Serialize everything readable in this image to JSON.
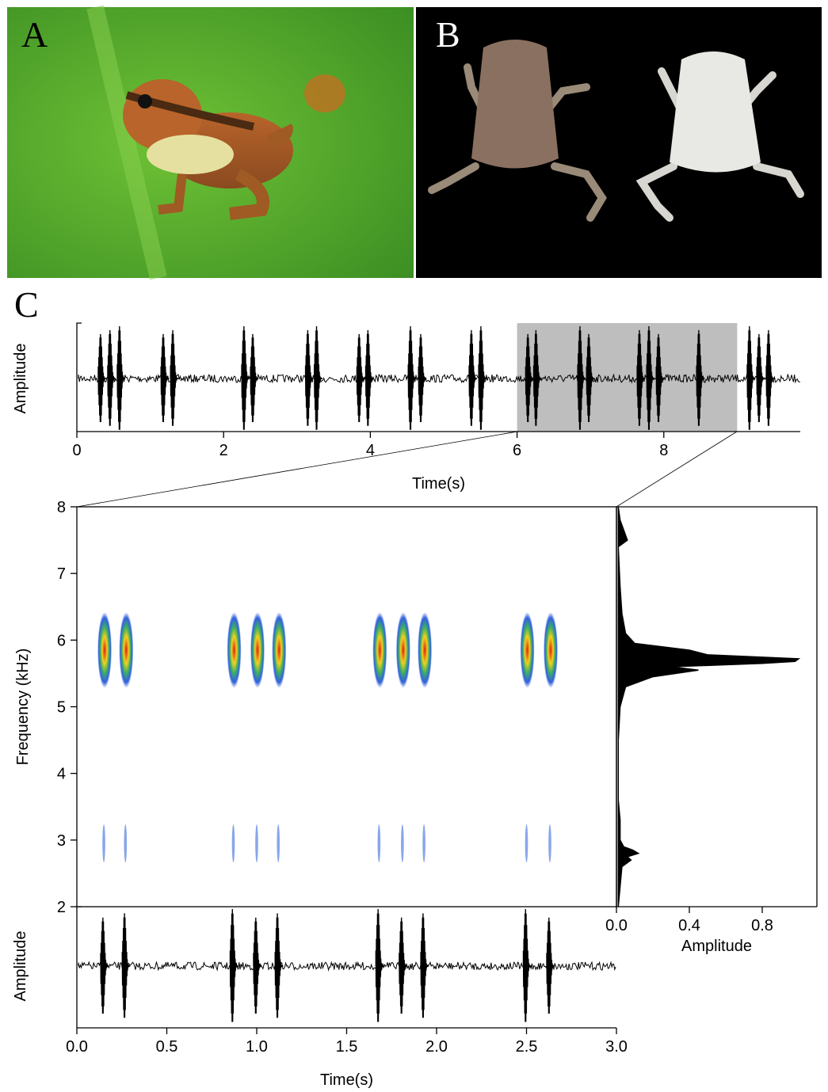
{
  "panels": {
    "a": "A",
    "b": "B",
    "c": "C"
  },
  "chart_data": [
    {
      "type": "oscillogram",
      "xlim": [
        0,
        9.86
      ],
      "xticks": [
        0,
        2,
        4,
        6,
        8
      ],
      "xlabel": "Time(s)",
      "ylabel": "Amplitude",
      "highlight": [
        6,
        9
      ],
      "pulses": [
        0.335,
        0.464,
        0.594,
        1.19,
        1.32,
        2.29,
        2.41,
        3.16,
        3.28,
        3.86,
        3.98,
        4.56,
        4.7,
        5.39,
        5.52,
        6.16,
        6.27,
        6.87,
        6.99,
        7.68,
        7.81,
        7.94,
        8.49,
        9.18,
        9.31,
        9.44
      ]
    },
    {
      "type": "spectrogram",
      "xlim": [
        0,
        3
      ],
      "ylim": [
        2,
        8
      ],
      "yticks": [
        2,
        3,
        4,
        5,
        6,
        7,
        8
      ],
      "ylabel": "Frequency (kHz)",
      "notes": [
        0.15,
        0.27,
        0.87,
        1.0,
        1.12,
        1.68,
        1.81,
        1.93,
        2.5,
        2.63
      ],
      "dominant_frequency": 5.85,
      "harmonic_frequency": 2.95
    },
    {
      "type": "power-spectrum",
      "xlim": [
        0,
        1.1
      ],
      "ylim": [
        2,
        8
      ],
      "xticks": [
        {
          "value": 0,
          "label": "0.0"
        },
        0.4,
        0.8
      ],
      "xlabel": "Amplitude",
      "frequency": [
        2.0,
        2.3,
        2.6,
        2.7,
        2.75,
        2.8,
        2.85,
        2.9,
        3.0,
        3.3,
        3.6,
        4.0,
        4.5,
        5.0,
        5.3,
        5.45,
        5.55,
        5.6,
        5.65,
        5.68,
        5.72,
        5.78,
        5.85,
        5.95,
        6.1,
        6.4,
        6.8,
        7.4,
        7.5,
        7.8,
        8.0
      ],
      "amplitude": [
        0.01,
        0.02,
        0.03,
        0.08,
        0.06,
        0.12,
        0.09,
        0.04,
        0.02,
        0.02,
        0.01,
        0.01,
        0.01,
        0.02,
        0.05,
        0.2,
        0.45,
        0.3,
        0.8,
        0.98,
        1.0,
        0.5,
        0.4,
        0.1,
        0.05,
        0.03,
        0.02,
        0.01,
        0.06,
        0.02,
        0.01
      ]
    },
    {
      "type": "oscillogram",
      "xlim": [
        0,
        3
      ],
      "xticks": [
        {
          "value": 0,
          "label": "0.0"
        },
        0.5,
        {
          "value": 1,
          "label": "1.0"
        },
        1.5,
        {
          "value": 2,
          "label": "2.0"
        },
        2.5,
        {
          "value": 3,
          "label": "3.0"
        }
      ],
      "xlabel": "Time(s)",
      "ylabel": "Amplitude",
      "pulses": [
        0.15,
        0.27,
        0.87,
        1.0,
        1.12,
        1.68,
        1.81,
        1.93,
        2.5,
        2.63
      ]
    }
  ]
}
